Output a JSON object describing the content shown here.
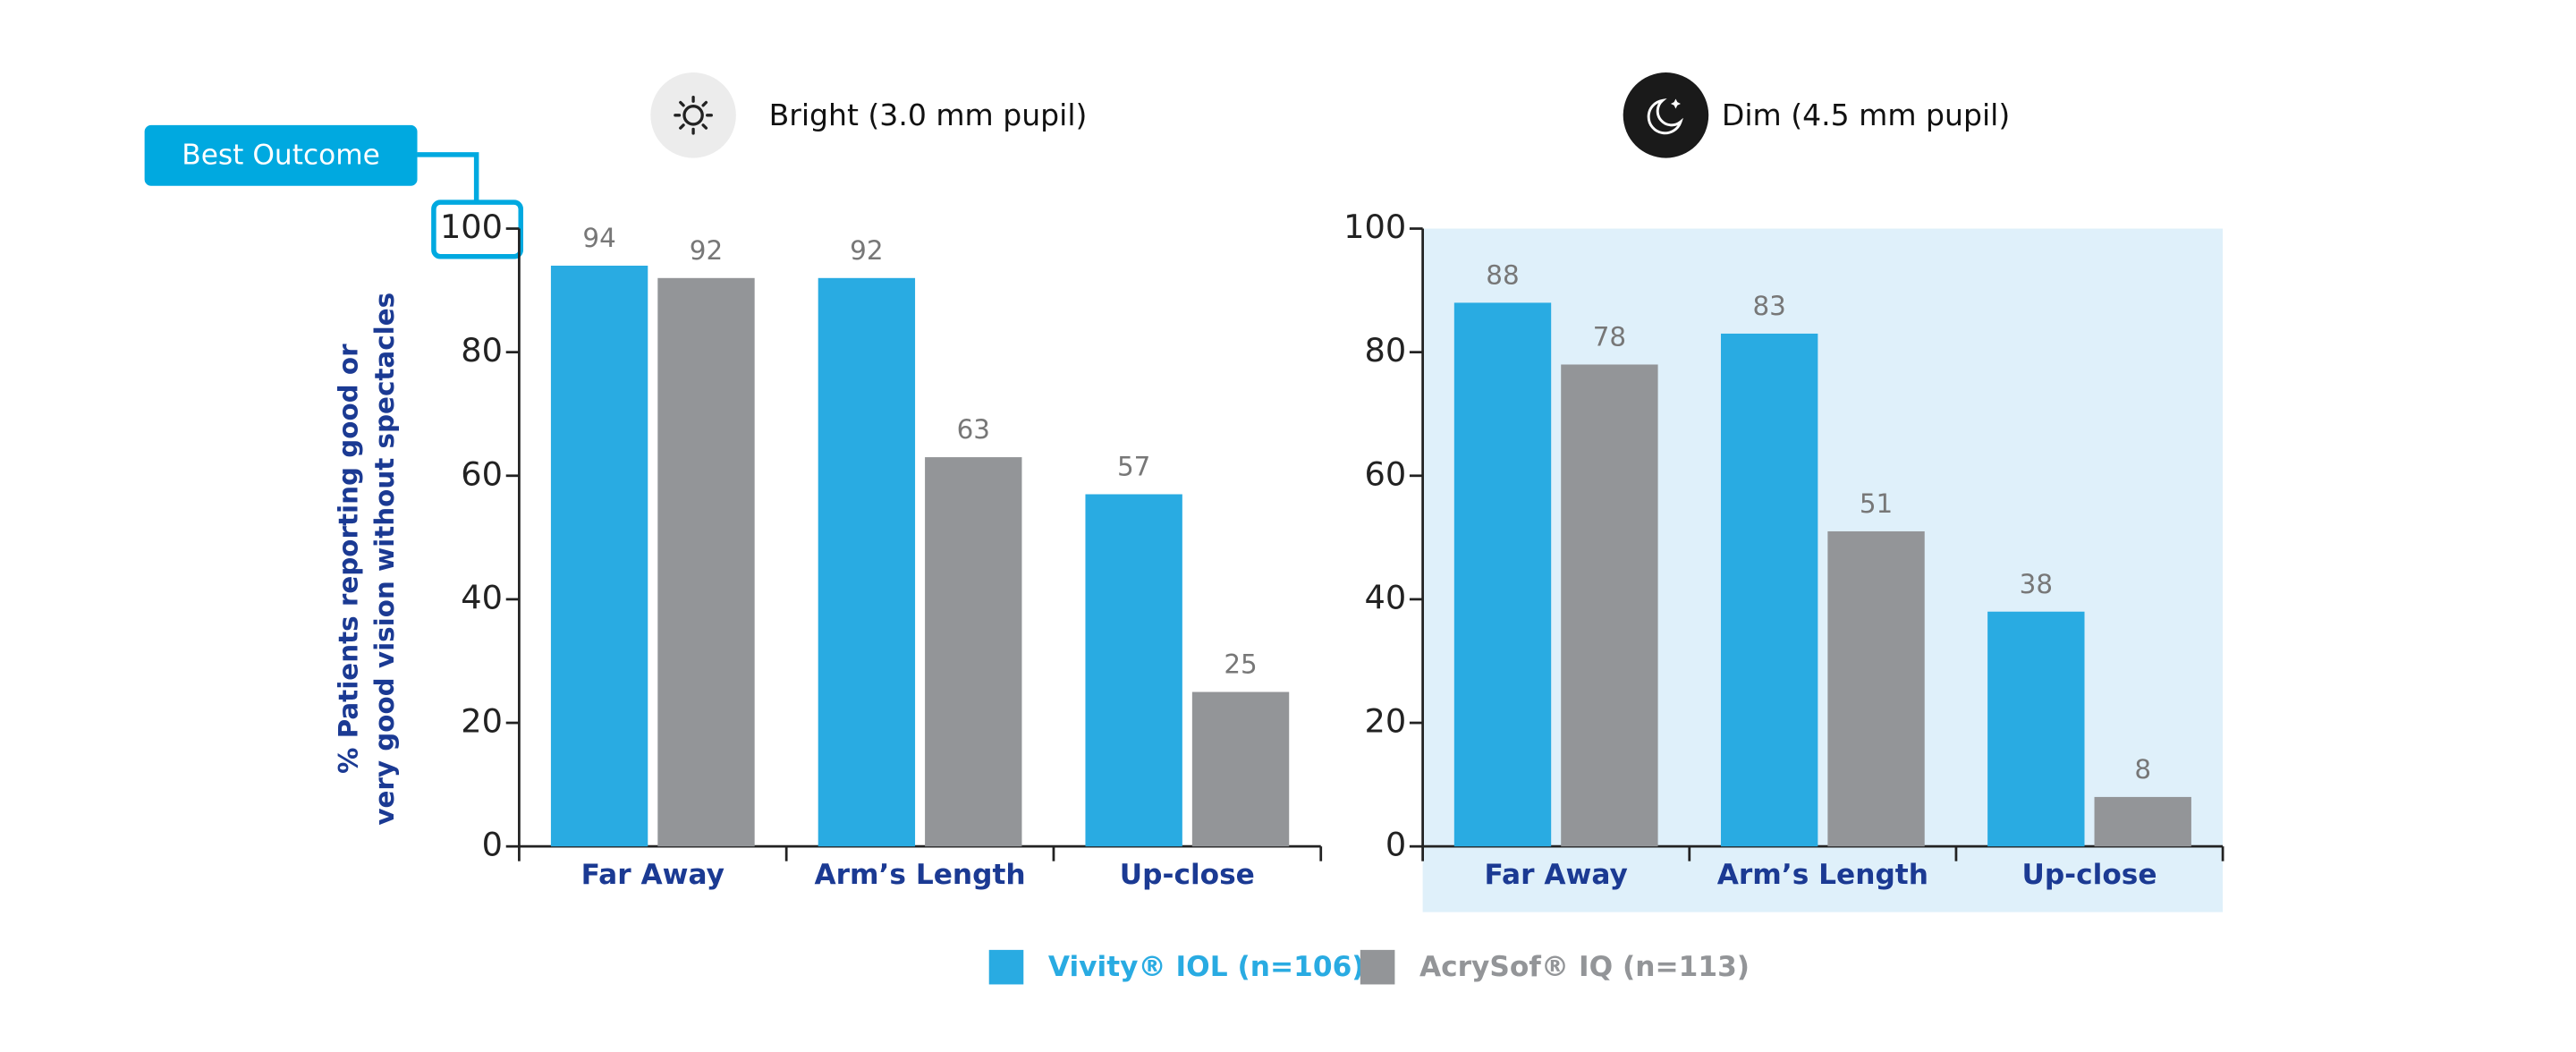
{
  "chart_data": [
    {
      "type": "bar",
      "title": "Bright (3.0 mm pupil)",
      "ylabel": [
        "% Patients reporting good or",
        "very good vision without spectacles"
      ],
      "annotation": "Best Outcome",
      "categories": [
        "Far Away",
        "Arm’s Length",
        "Up-close"
      ],
      "series": [
        {
          "name": "Vivity® IOL (n=106)",
          "color": "#29abe2",
          "values": [
            94,
            92,
            57
          ]
        },
        {
          "name": "AcrySof® IQ (n=113)",
          "color": "#939598",
          "values": [
            92,
            63,
            25
          ]
        }
      ],
      "ylim": [
        0,
        100
      ],
      "yticks": [
        0,
        20,
        40,
        60,
        80,
        100
      ]
    },
    {
      "type": "bar",
      "title": "Dim (4.5 mm pupil)",
      "background": "#dff0fa",
      "categories": [
        "Far Away",
        "Arm’s Length",
        "Up-close"
      ],
      "series": [
        {
          "name": "Vivity® IOL (n=106)",
          "color": "#29abe2",
          "values": [
            88,
            83,
            38
          ]
        },
        {
          "name": "AcrySof® IQ (n=113)",
          "color": "#939598",
          "values": [
            78,
            51,
            8
          ]
        }
      ],
      "ylim": [
        0,
        100
      ],
      "yticks": [
        0,
        20,
        40,
        60,
        80,
        100
      ]
    }
  ]
}
